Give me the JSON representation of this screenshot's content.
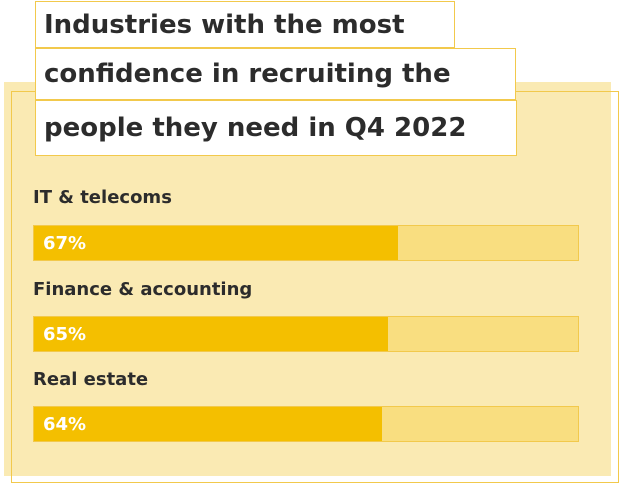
{
  "chart_data": {
    "type": "bar",
    "orientation": "horizontal",
    "title_lines": [
      "Industries with the most",
      "confidence in recruiting the",
      "people they need in Q4 2022"
    ],
    "categories": [
      "IT & telecoms",
      "Finance & accounting",
      "Real estate"
    ],
    "values": [
      67,
      65,
      64
    ],
    "value_labels": [
      "67%",
      "65%",
      "64%"
    ],
    "xlim": [
      0,
      100
    ],
    "grid": false,
    "legend": "none",
    "colors": {
      "bar_fill": "#f4bf00",
      "bar_track": "#f9de80",
      "outline": "#f2c94c",
      "panel": "#faeab3"
    }
  }
}
